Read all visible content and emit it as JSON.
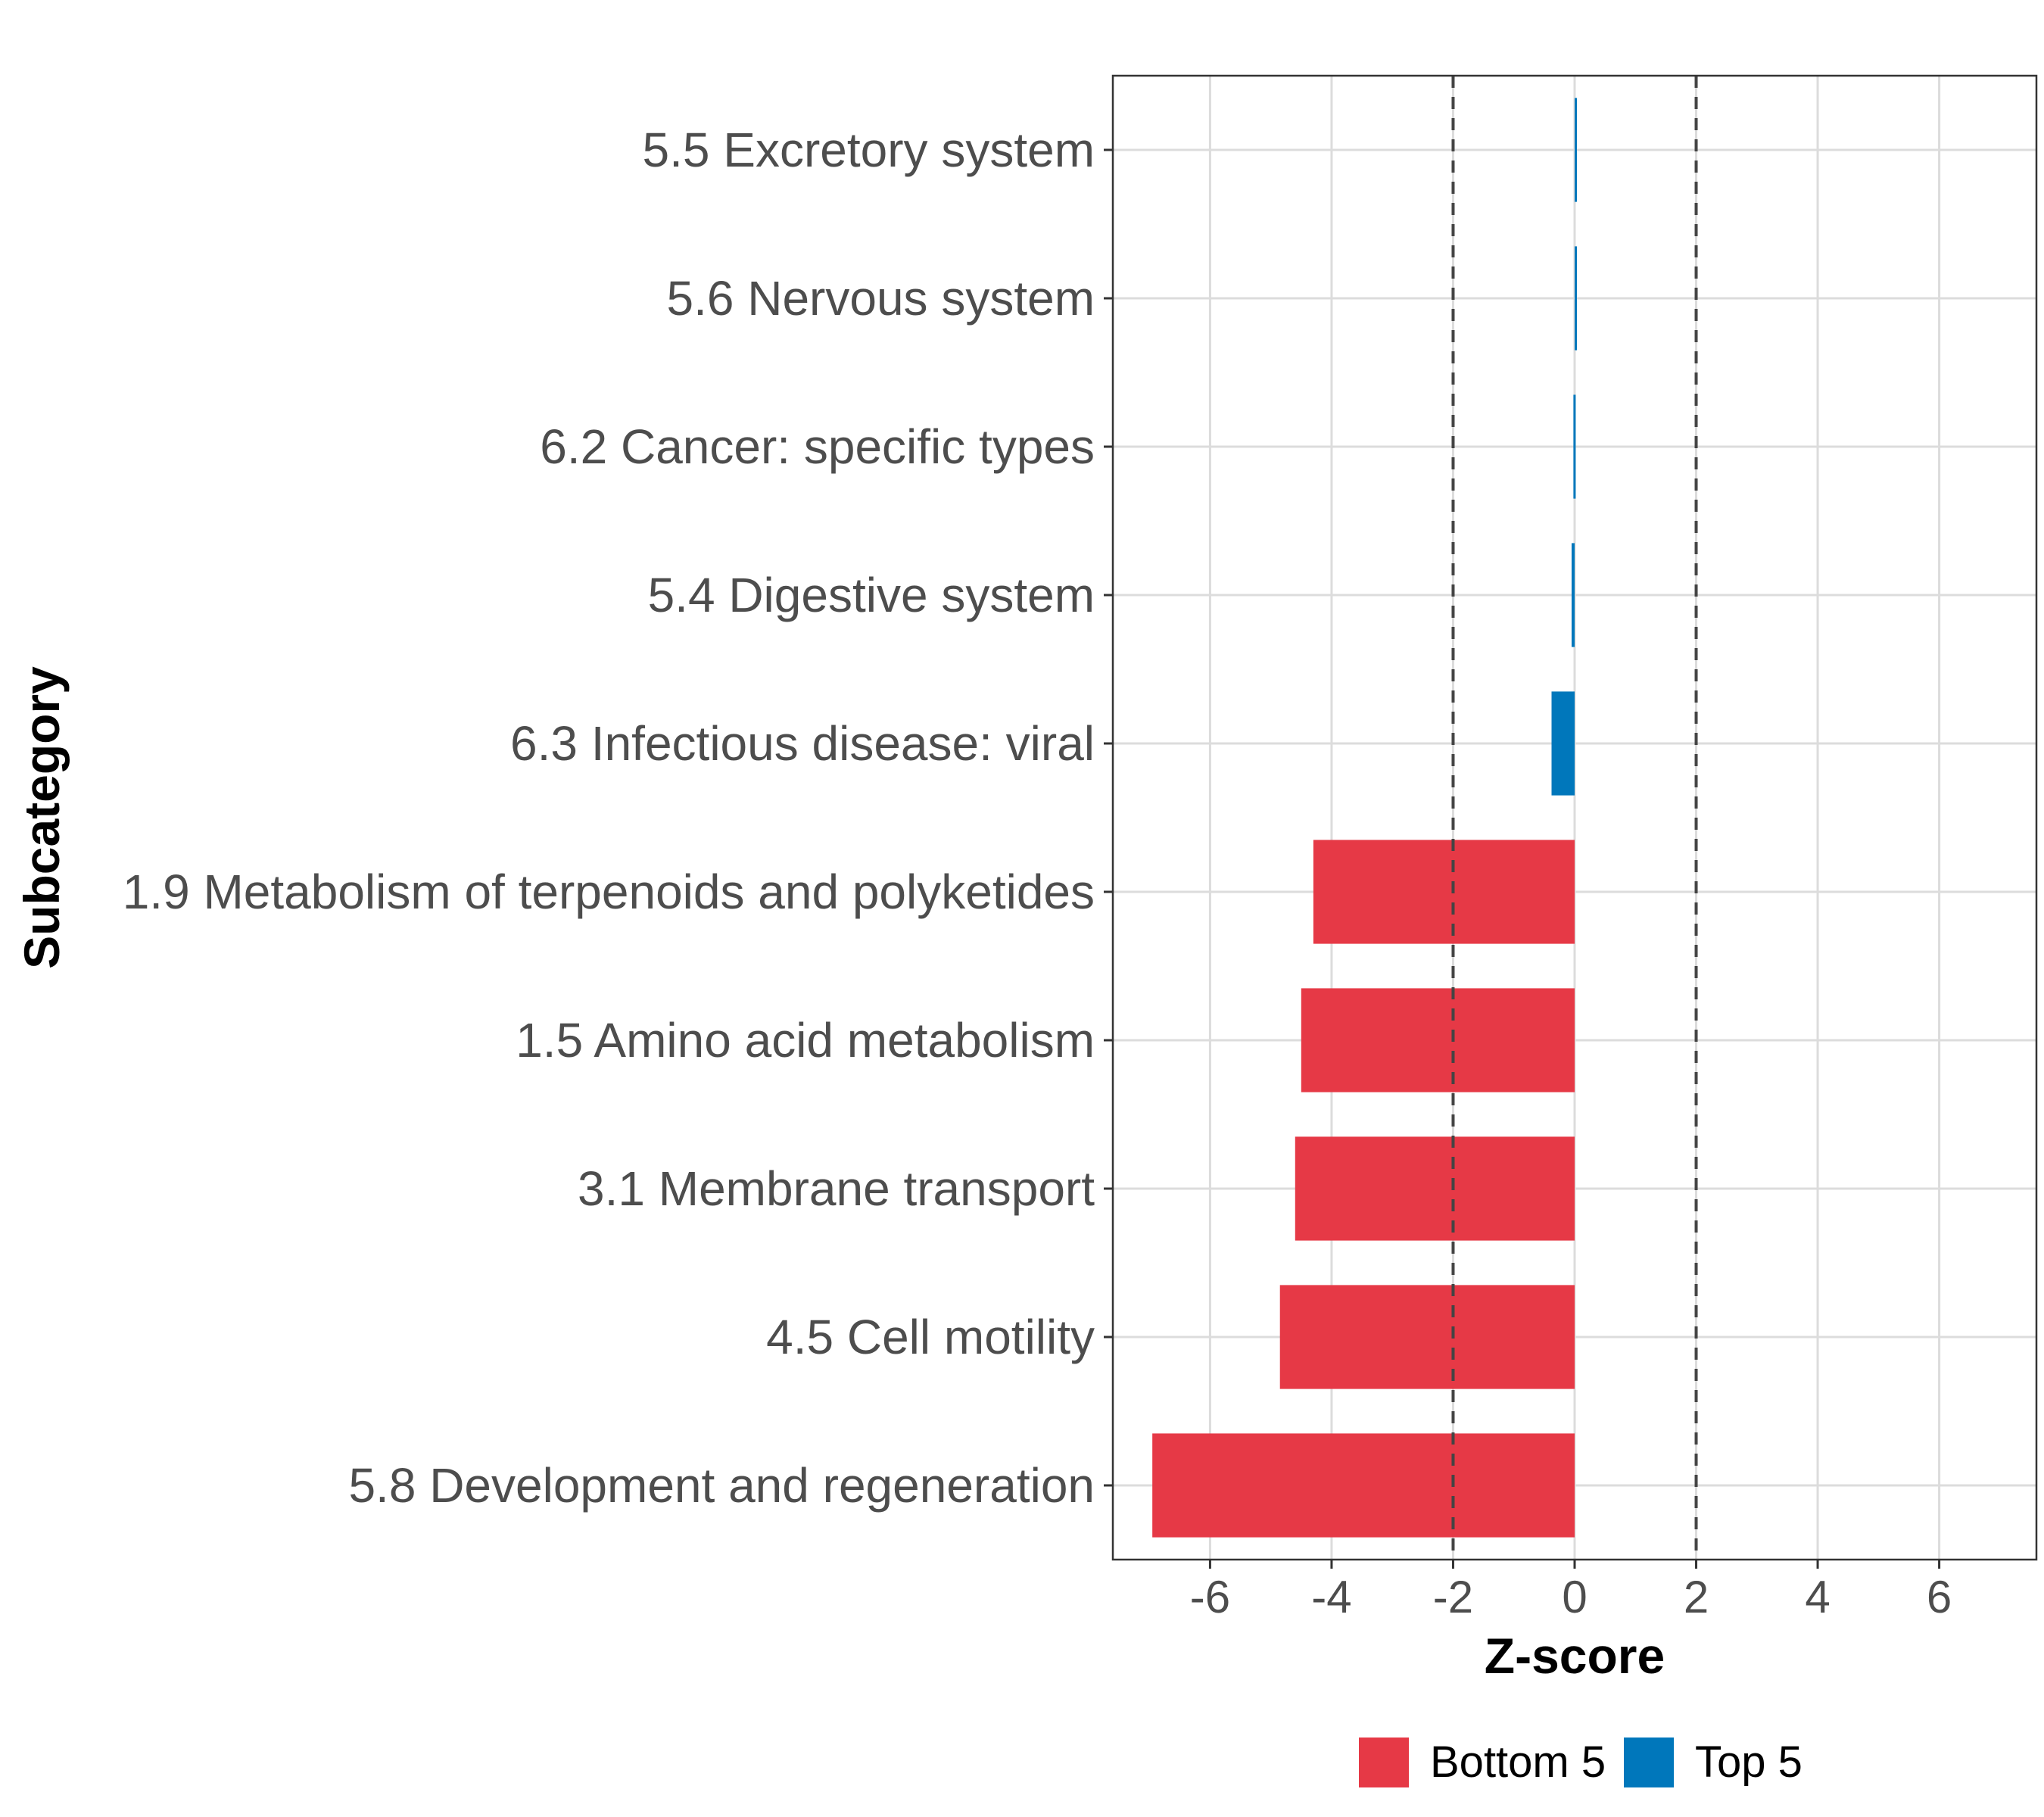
{
  "chart_data": {
    "type": "bar",
    "orientation": "horizontal",
    "title": "",
    "xlabel": "Z-score",
    "ylabel": "Subcategory",
    "xlim": [
      -7.6,
      7.6
    ],
    "xticks": [
      "-6",
      "-4",
      "-2",
      "0",
      "2",
      "4",
      "6"
    ],
    "reference_lines": [
      -2,
      2
    ],
    "grid": true,
    "legend_position": "bottom",
    "categories": [
      "5.5 Excretory system",
      "5.6 Nervous system",
      "6.2 Cancer: specific types",
      "5.4 Digestive system",
      "6.3 Infectious disease: viral",
      "1.9 Metabolism of terpenoids and polyketides",
      "1.5 Amino acid metabolism",
      "3.1 Membrane transport",
      "4.5 Cell motility",
      "5.8 Development and regeneration"
    ],
    "values": [
      0.02,
      0.02,
      -0.02,
      -0.05,
      -0.38,
      -4.3,
      -4.5,
      -4.6,
      -4.85,
      -6.95
    ],
    "groups": [
      "Top 5",
      "Top 5",
      "Top 5",
      "Top 5",
      "Top 5",
      "Bottom 5",
      "Bottom 5",
      "Bottom 5",
      "Bottom 5",
      "Bottom 5"
    ],
    "legend": [
      {
        "name": "Bottom 5",
        "color": "#E63946"
      },
      {
        "name": "Top 5",
        "color": "#0077BB"
      }
    ]
  }
}
